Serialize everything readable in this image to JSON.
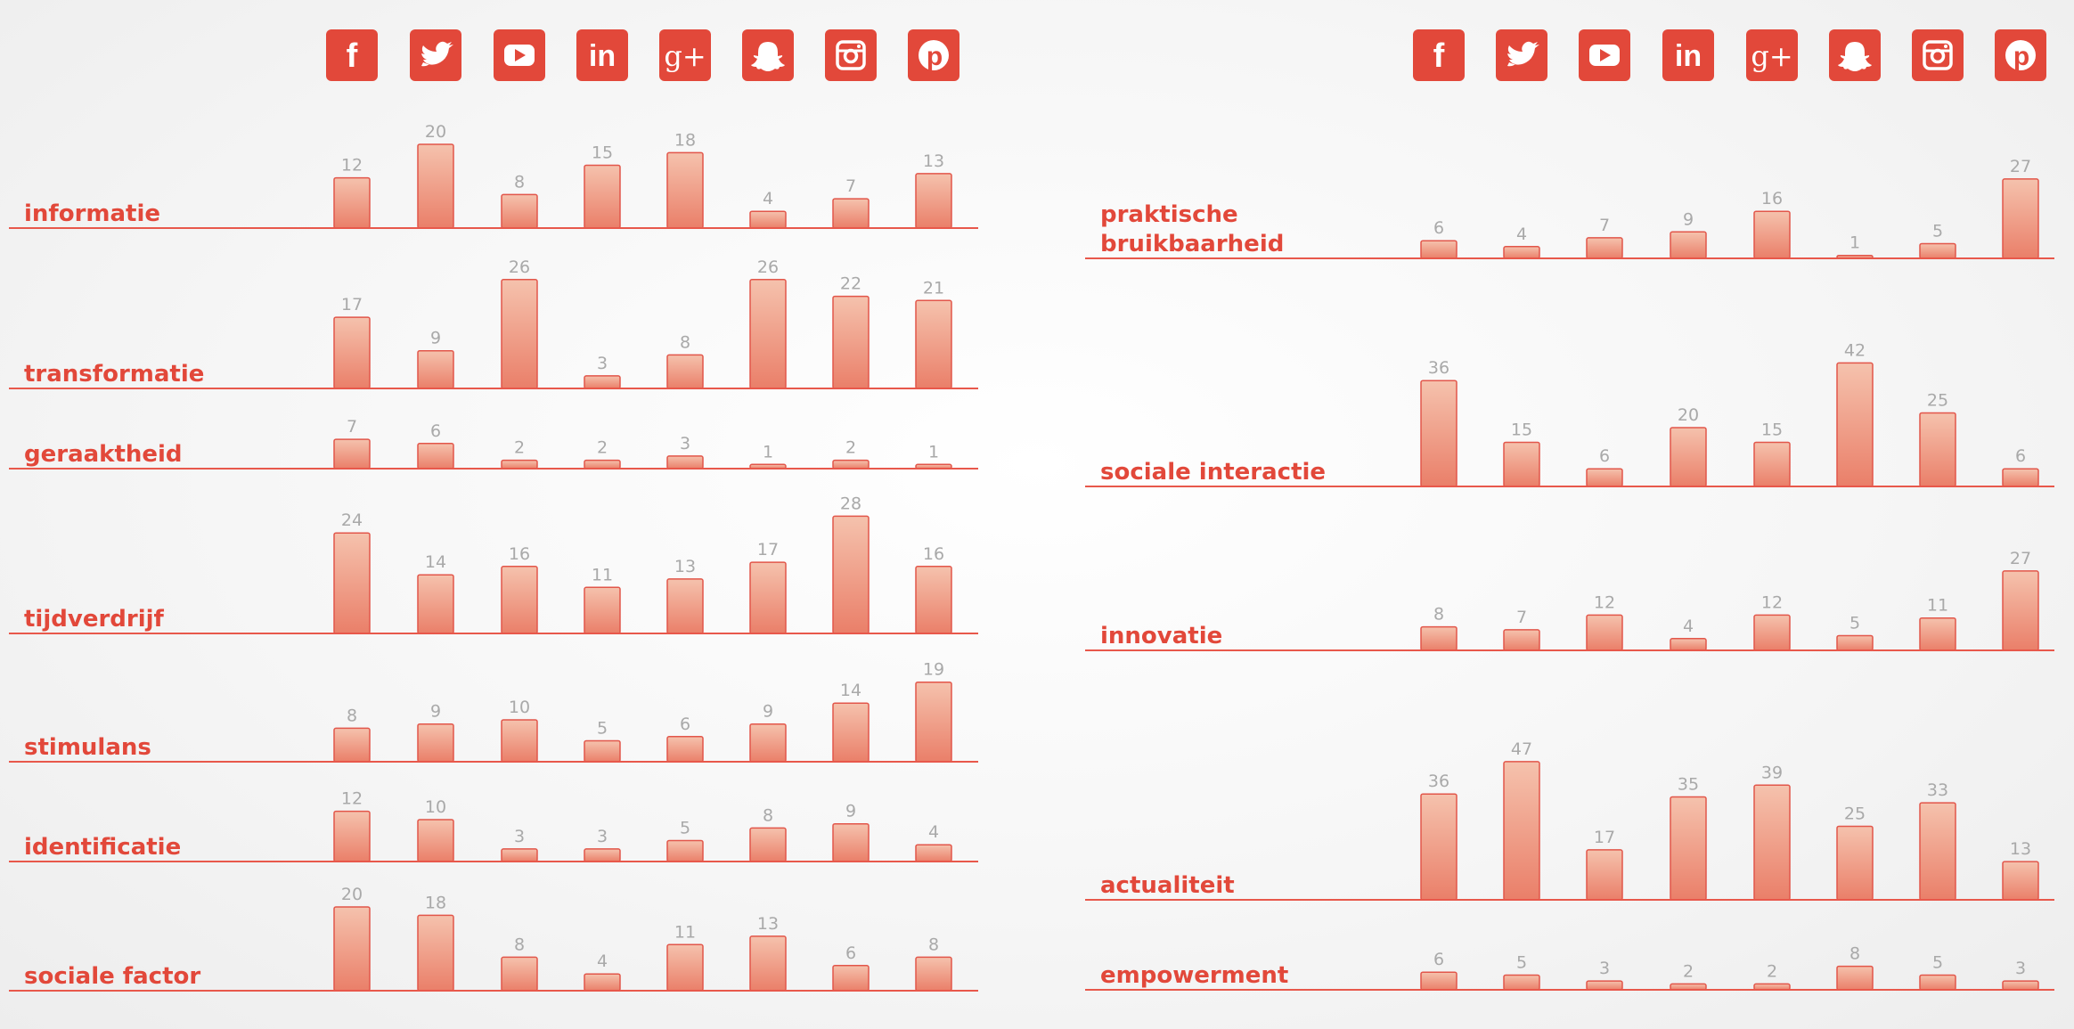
{
  "chart_data": [
    {
      "type": "bar",
      "platforms": [
        "facebook",
        "twitter",
        "youtube",
        "linkedin",
        "google-plus",
        "snapchat",
        "instagram",
        "pinterest"
      ],
      "icon_labels": [
        "f",
        "t",
        "yt",
        "in",
        "g+",
        "snap",
        "ig",
        "p"
      ],
      "groups": [
        {
          "category": "informatie",
          "values": [
            12,
            20,
            8,
            15,
            18,
            4,
            7,
            13
          ]
        },
        {
          "category": "transformatie",
          "values": [
            17,
            9,
            26,
            3,
            8,
            26,
            22,
            21
          ]
        },
        {
          "category": "geraaktheid",
          "values": [
            7,
            6,
            2,
            2,
            3,
            1,
            2,
            1
          ]
        },
        {
          "category": "tijdverdrijf",
          "values": [
            24,
            14,
            16,
            11,
            13,
            17,
            28,
            16
          ]
        },
        {
          "category": "stimulans",
          "values": [
            8,
            9,
            10,
            5,
            6,
            9,
            14,
            19
          ]
        },
        {
          "category": "identificatie",
          "values": [
            12,
            10,
            3,
            3,
            5,
            8,
            9,
            4
          ]
        },
        {
          "category": "sociale factor",
          "values": [
            20,
            18,
            8,
            4,
            11,
            13,
            6,
            8
          ]
        }
      ]
    },
    {
      "type": "bar",
      "platforms": [
        "facebook",
        "twitter",
        "youtube",
        "linkedin",
        "google-plus",
        "snapchat",
        "instagram",
        "pinterest"
      ],
      "icon_labels": [
        "f",
        "t",
        "yt",
        "in",
        "g+",
        "snap",
        "ig",
        "p"
      ],
      "groups": [
        {
          "category": "praktische bruikbaarheid",
          "label_lines": [
            "praktische",
            "bruikbaarheid"
          ],
          "values": [
            6,
            4,
            7,
            9,
            16,
            1,
            5,
            27
          ]
        },
        {
          "category": "sociale interactie",
          "values": [
            36,
            15,
            6,
            20,
            15,
            42,
            25,
            6
          ]
        },
        {
          "category": "innovatie",
          "values": [
            8,
            7,
            12,
            4,
            12,
            5,
            11,
            27
          ]
        },
        {
          "category": "actualiteit",
          "values": [
            36,
            47,
            17,
            35,
            39,
            25,
            33,
            13
          ]
        },
        {
          "category": "empowerment",
          "values": [
            6,
            5,
            3,
            2,
            2,
            8,
            5,
            3
          ]
        }
      ]
    }
  ],
  "colors": {
    "accent": "#e2483a",
    "bar_top": "#f5c2ad",
    "bar_bottom": "#ea7f69",
    "value_text": "#a9a9a9"
  }
}
